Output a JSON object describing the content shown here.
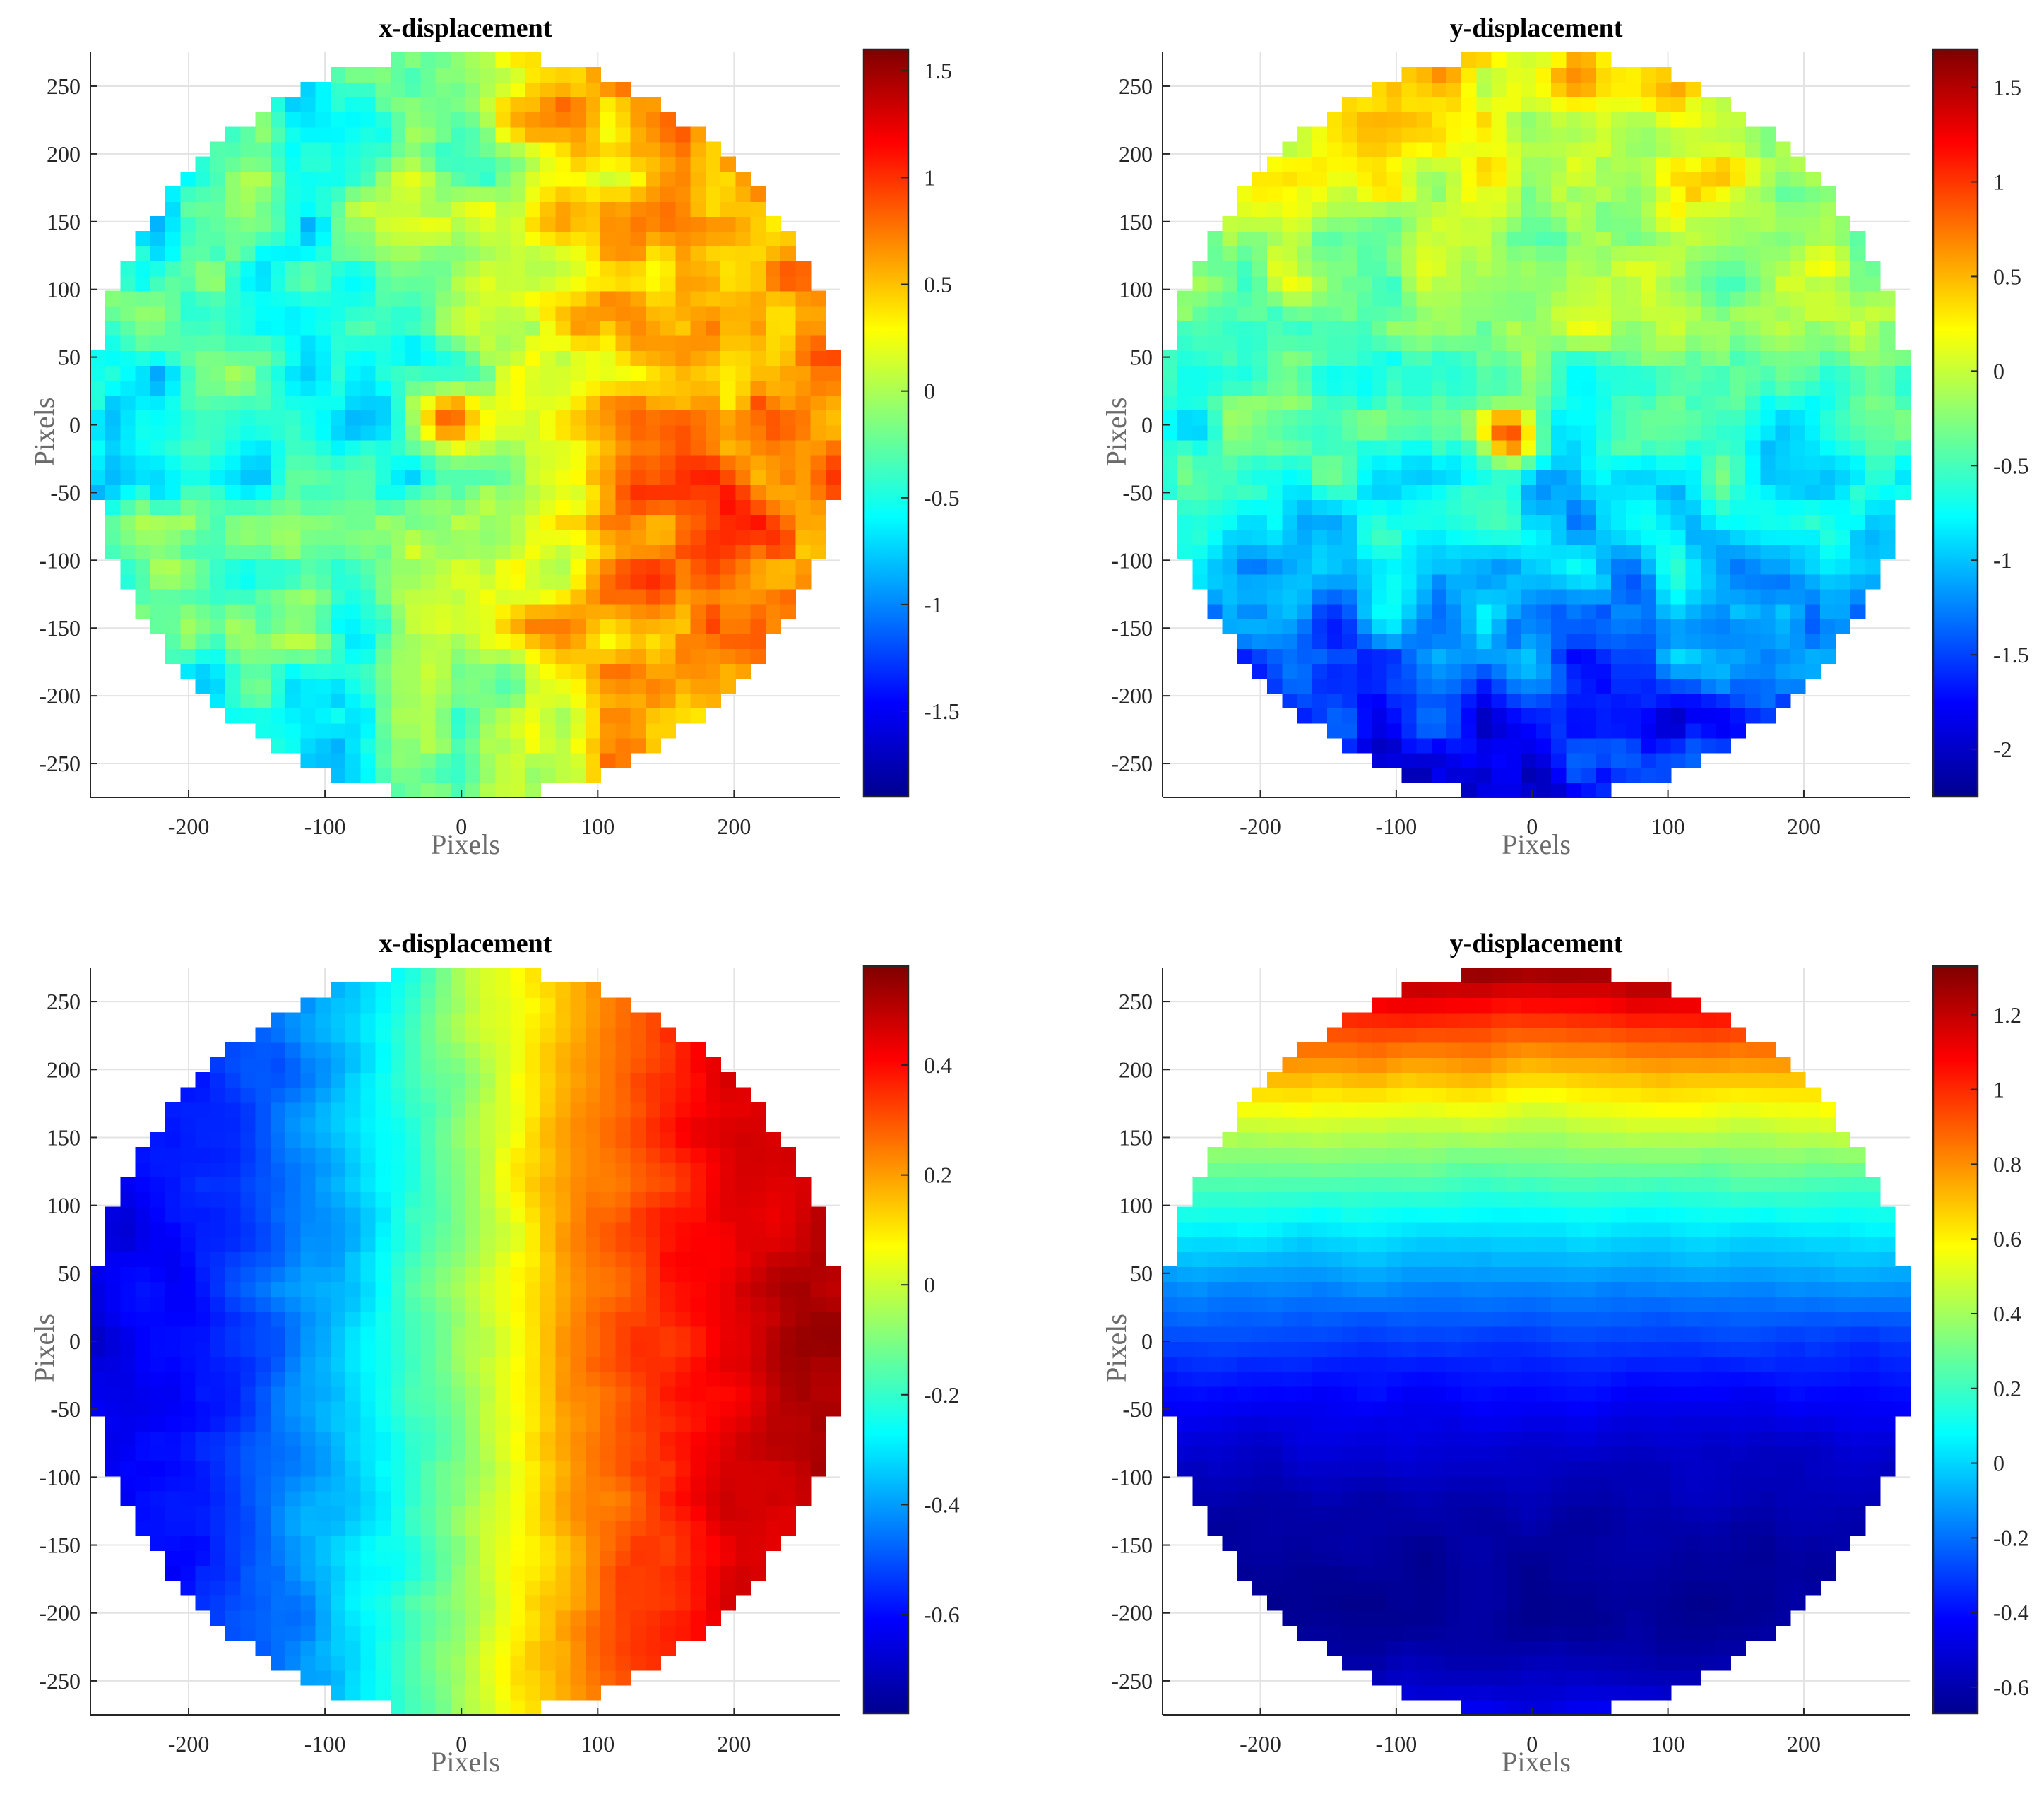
{
  "figure": {
    "colormap": "jet",
    "tick_color": "#262626",
    "label_color": "#6b6b6b"
  },
  "chart_data": [
    {
      "type": "heatmap",
      "title": "x-displacement",
      "xlabel": "Pixels",
      "ylabel": "Pixels",
      "xlim": [
        -272,
        278
      ],
      "ylim": [
        -275,
        275
      ],
      "xticks": [
        -200,
        -100,
        0,
        100,
        200
      ],
      "yticks": [
        250,
        200,
        150,
        100,
        50,
        0,
        -50,
        -100,
        -150,
        -200,
        -250
      ],
      "mask": "circle",
      "mask_center": [
        3,
        0
      ],
      "mask_radius": 276,
      "grid": true,
      "colorbar": {
        "min": -1.9,
        "max": 1.6,
        "ticks": [
          1.5,
          1,
          0.5,
          0,
          -0.5,
          -1,
          -1.5
        ]
      },
      "field_pattern": "noisy; mean rises from about -0.4 (left half) to about 0.8 (right half) with random speckles"
    },
    {
      "type": "heatmap",
      "title": "y-displacement",
      "xlabel": "Pixels",
      "ylabel": "Pixels",
      "xlim": [
        -272,
        278
      ],
      "ylim": [
        -275,
        275
      ],
      "xticks": [
        -200,
        -100,
        0,
        100,
        200
      ],
      "yticks": [
        250,
        200,
        150,
        100,
        50,
        0,
        -50,
        -100,
        -150,
        -200,
        -250
      ],
      "mask": "circle",
      "mask_center": [
        3,
        0
      ],
      "mask_radius": 276,
      "grid": true,
      "colorbar": {
        "min": -2.25,
        "max": 1.7,
        "ticks": [
          1.5,
          1,
          0.5,
          0,
          -0.5,
          -1,
          -1.5,
          -2
        ]
      },
      "field_pattern": "noisy; mean about 0.3 near top decreasing to about -1.2 near bottom, hot spot near (-10,-10)"
    },
    {
      "type": "heatmap",
      "title": "x-displacement",
      "xlabel": "Pixels",
      "ylabel": "Pixels",
      "xlim": [
        -272,
        278
      ],
      "ylim": [
        -275,
        275
      ],
      "xticks": [
        -200,
        -100,
        0,
        100,
        200
      ],
      "yticks": [
        250,
        200,
        150,
        100,
        50,
        0,
        -50,
        -100,
        -150,
        -200,
        -250
      ],
      "mask": "circle",
      "mask_center": [
        3,
        0
      ],
      "mask_radius": 276,
      "grid": true,
      "colorbar": {
        "min": -0.78,
        "max": 0.58,
        "ticks": [
          0.4,
          0.2,
          0,
          -0.2,
          -0.4,
          -0.6
        ]
      },
      "field_pattern": "smooth left-to-right gradient from about -0.65 at x=-270 to about 0.55 at x=270"
    },
    {
      "type": "heatmap",
      "title": "y-displacement",
      "xlabel": "Pixels",
      "ylabel": "Pixels",
      "xlim": [
        -272,
        278
      ],
      "ylim": [
        -275,
        275
      ],
      "xticks": [
        -200,
        -100,
        0,
        100,
        200
      ],
      "yticks": [
        250,
        200,
        150,
        100,
        50,
        0,
        -50,
        -100,
        -150,
        -200,
        -250
      ],
      "mask": "circle",
      "mask_center": [
        3,
        0
      ],
      "mask_radius": 276,
      "grid": true,
      "colorbar": {
        "min": -0.67,
        "max": 1.33,
        "ticks": [
          1.2,
          1,
          0.8,
          0.6,
          0.4,
          0.2,
          0,
          -0.2,
          -0.4,
          -0.6
        ]
      },
      "field_pattern": "smooth bowl: about 1.3 at top, decreasing to about -0.6 near y=-190, slightly higher at bottom edge"
    }
  ]
}
